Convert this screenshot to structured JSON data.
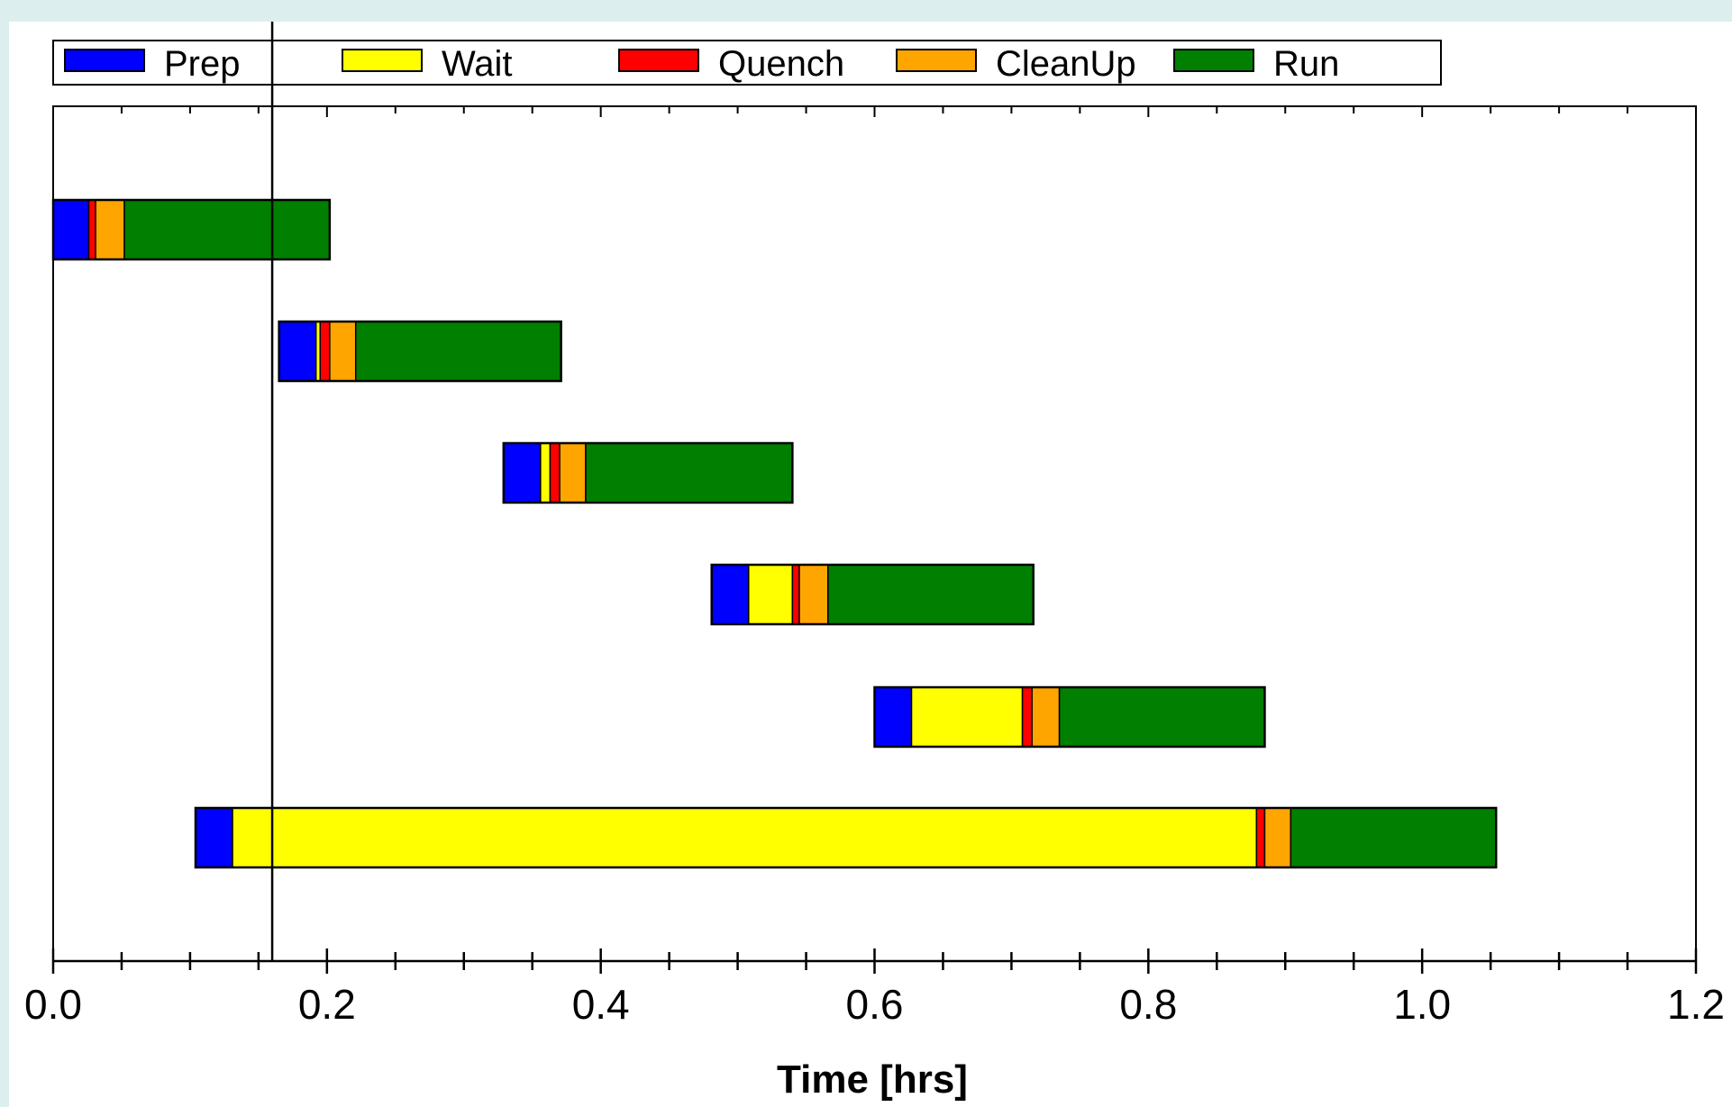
{
  "chart_data": {
    "type": "gantt",
    "xlabel": "Time [hrs]",
    "xlim": [
      0.0,
      1.2
    ],
    "xticks": [
      "0.0",
      "0.2",
      "0.4",
      "0.6",
      "0.8",
      "1.0",
      "1.2"
    ],
    "grid": false,
    "legend_position": "top",
    "marker_line_x": 0.16,
    "series": [
      {
        "name": "Prep",
        "color": "#0000ff"
      },
      {
        "name": "Wait",
        "color": "#ffff00"
      },
      {
        "name": "Quench",
        "color": "#ff0000"
      },
      {
        "name": "CleanUp",
        "color": "#ffa500"
      },
      {
        "name": "Run",
        "color": "#007f00"
      }
    ],
    "batches": [
      {
        "segments": [
          {
            "phase": "Prep",
            "start": 0.0,
            "end": 0.026
          },
          {
            "phase": "Quench",
            "start": 0.026,
            "end": 0.031
          },
          {
            "phase": "CleanUp",
            "start": 0.031,
            "end": 0.052
          },
          {
            "phase": "Run",
            "start": 0.052,
            "end": 0.202
          }
        ]
      },
      {
        "segments": [
          {
            "phase": "Prep",
            "start": 0.165,
            "end": 0.192
          },
          {
            "phase": "Wait",
            "start": 0.192,
            "end": 0.195
          },
          {
            "phase": "Quench",
            "start": 0.195,
            "end": 0.202
          },
          {
            "phase": "CleanUp",
            "start": 0.202,
            "end": 0.221
          },
          {
            "phase": "Run",
            "start": 0.221,
            "end": 0.371
          }
        ]
      },
      {
        "segments": [
          {
            "phase": "Prep",
            "start": 0.329,
            "end": 0.356
          },
          {
            "phase": "Wait",
            "start": 0.356,
            "end": 0.363
          },
          {
            "phase": "Quench",
            "start": 0.363,
            "end": 0.37
          },
          {
            "phase": "CleanUp",
            "start": 0.37,
            "end": 0.389
          },
          {
            "phase": "Run",
            "start": 0.389,
            "end": 0.54
          }
        ]
      },
      {
        "segments": [
          {
            "phase": "Prep",
            "start": 0.481,
            "end": 0.508
          },
          {
            "phase": "Wait",
            "start": 0.508,
            "end": 0.54
          },
          {
            "phase": "Quench",
            "start": 0.54,
            "end": 0.545
          },
          {
            "phase": "CleanUp",
            "start": 0.545,
            "end": 0.566
          },
          {
            "phase": "Run",
            "start": 0.566,
            "end": 0.716
          }
        ]
      },
      {
        "segments": [
          {
            "phase": "Prep",
            "start": 0.6,
            "end": 0.627
          },
          {
            "phase": "Wait",
            "start": 0.627,
            "end": 0.708
          },
          {
            "phase": "Quench",
            "start": 0.708,
            "end": 0.715
          },
          {
            "phase": "CleanUp",
            "start": 0.715,
            "end": 0.735
          },
          {
            "phase": "Run",
            "start": 0.735,
            "end": 0.885
          }
        ]
      },
      {
        "segments": [
          {
            "phase": "Prep",
            "start": 0.104,
            "end": 0.131
          },
          {
            "phase": "Wait",
            "start": 0.131,
            "end": 0.879
          },
          {
            "phase": "Quench",
            "start": 0.879,
            "end": 0.885
          },
          {
            "phase": "CleanUp",
            "start": 0.885,
            "end": 0.904
          },
          {
            "phase": "Run",
            "start": 0.904,
            "end": 1.054
          }
        ]
      }
    ]
  }
}
